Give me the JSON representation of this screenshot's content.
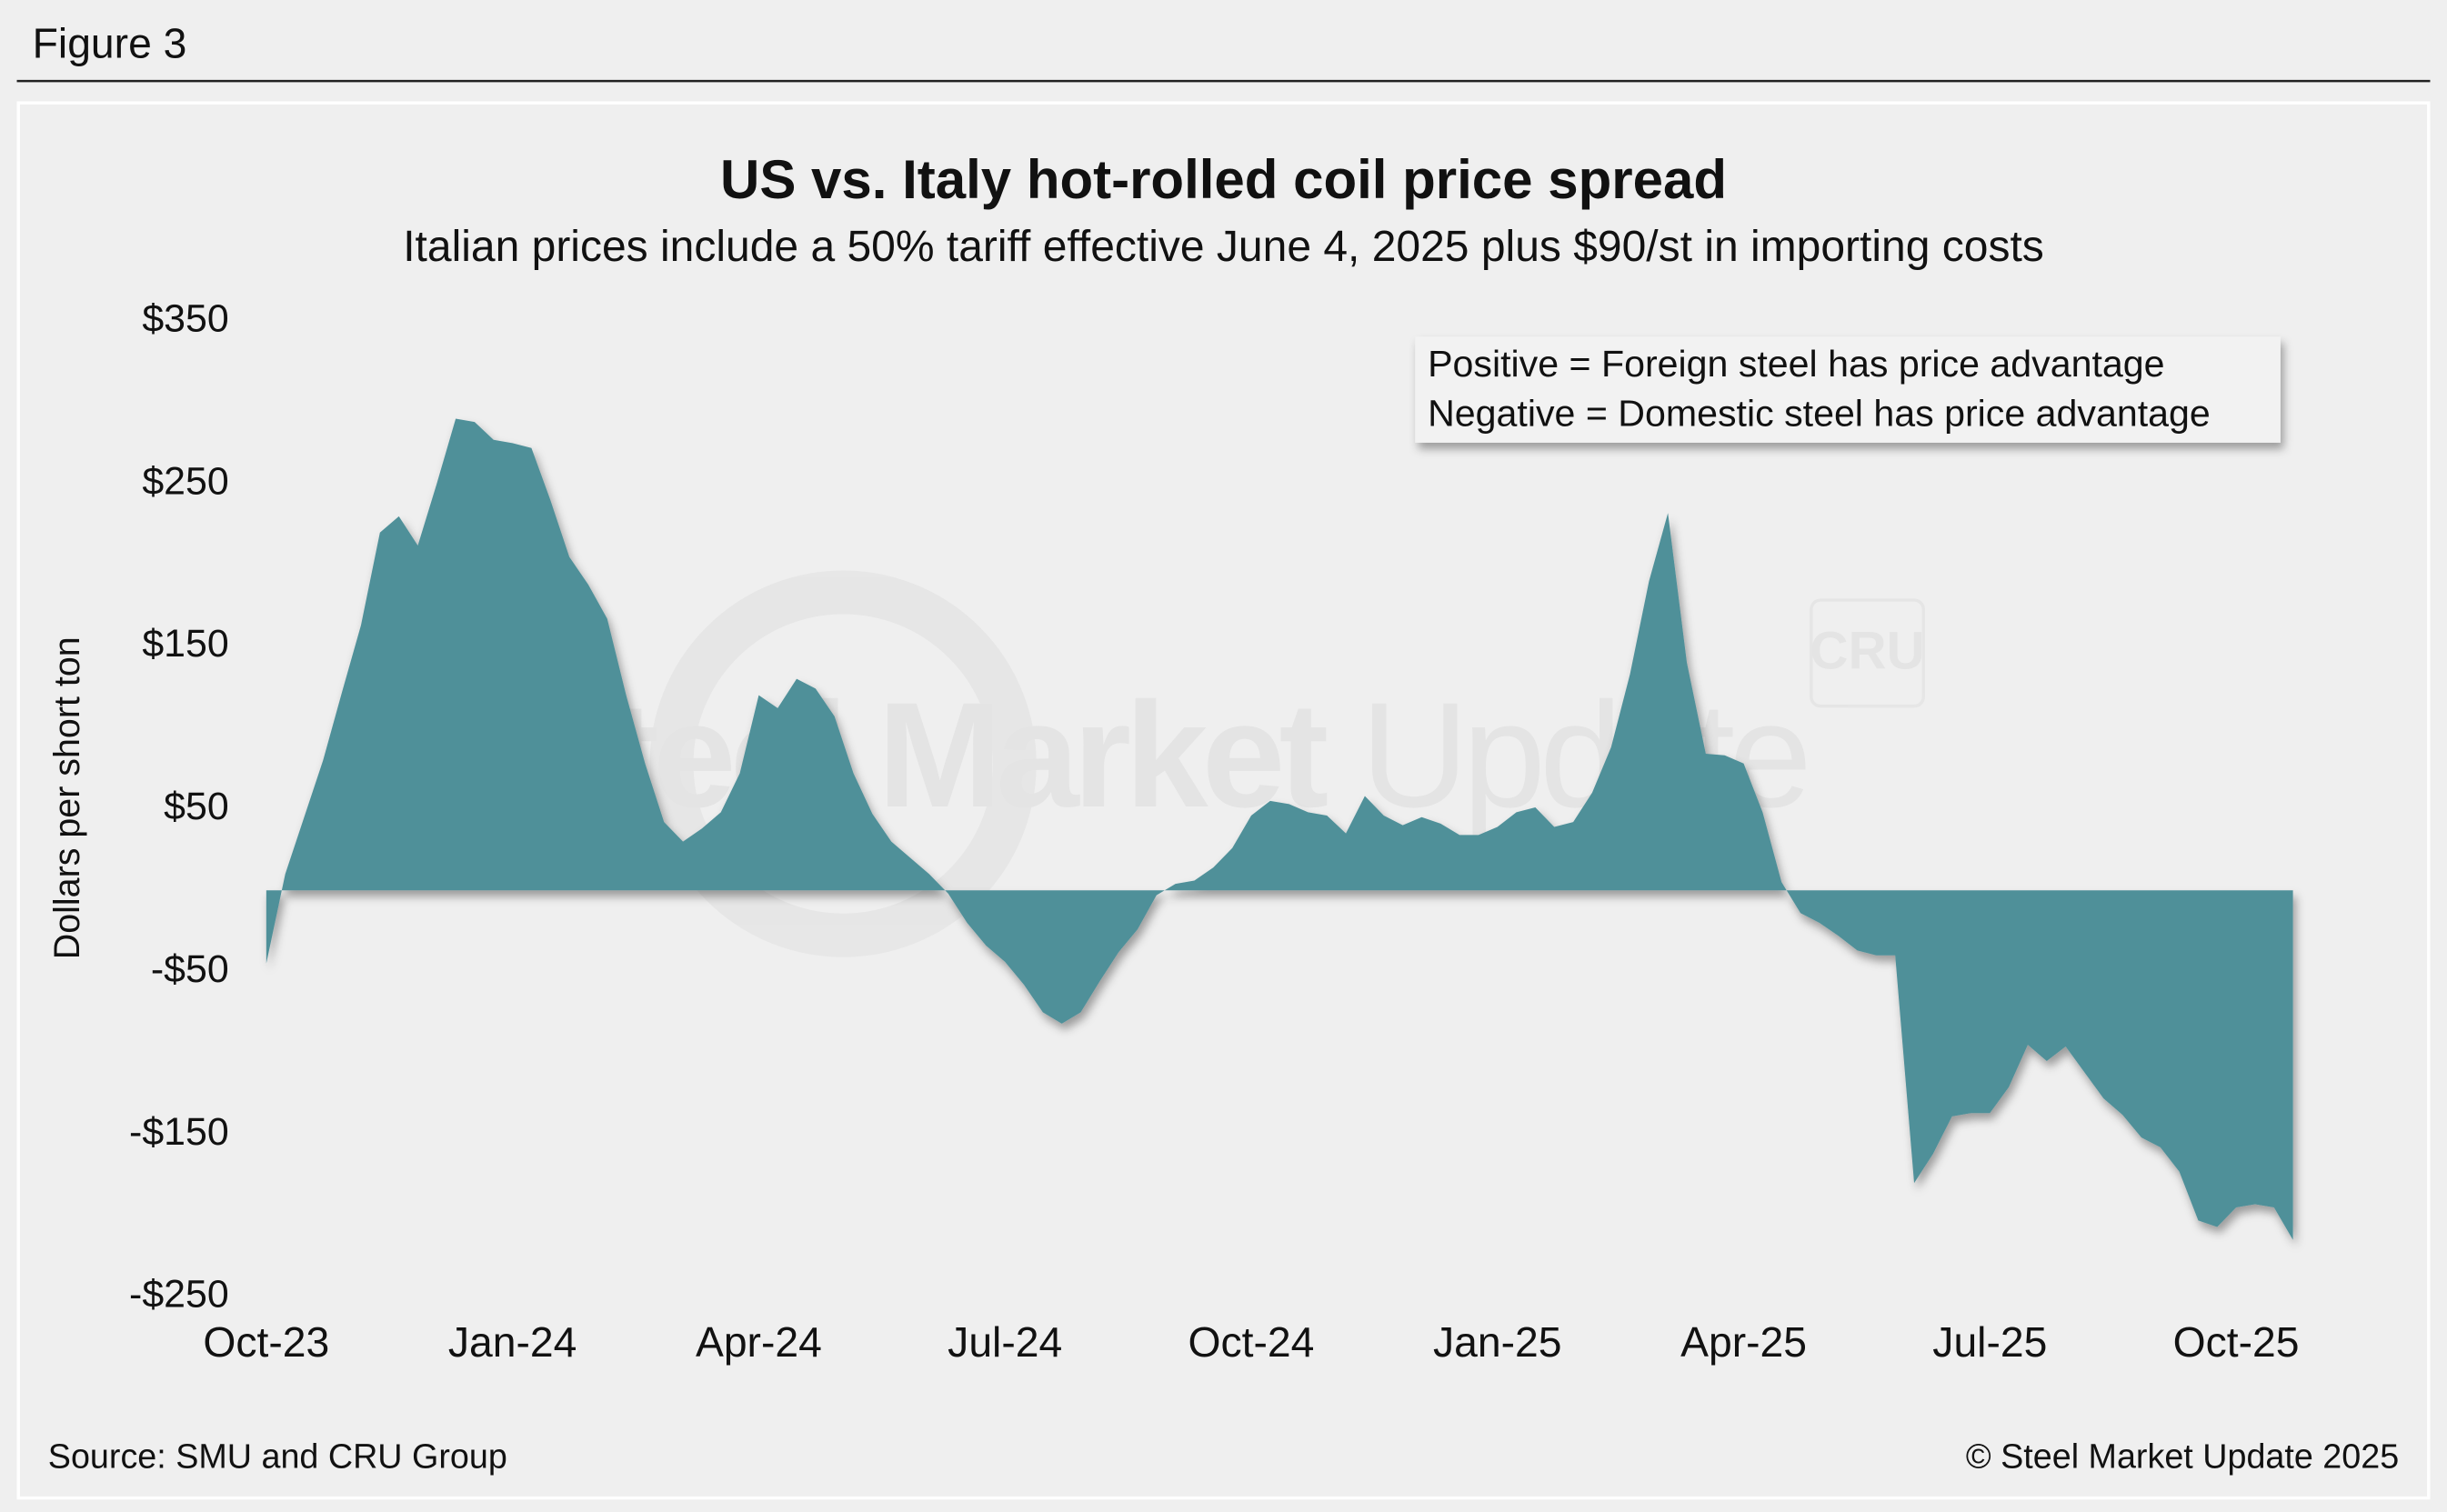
{
  "figure_label": "Figure 3",
  "source": "Source: SMU and CRU Group",
  "copyright": "© Steel Market Update 2025",
  "watermark": [
    "Steel Market",
    "Update"
  ],
  "watermark_logo": "CRU",
  "chart_data": {
    "type": "area",
    "title": "US vs. Italy hot-rolled coil price spread",
    "subtitle": "Italian prices include a 50% tariff effective June 4, 2025 plus $90/st in importing costs",
    "y_label": "Dollars per short ton",
    "annotations": [
      "Positive = Foreign steel has price advantage",
      "Negative = Domestic steel has price advantage"
    ],
    "color": "#4f9099",
    "ylim": [
      -250,
      350
    ],
    "yticks": [
      {
        "value": 350,
        "label": "$350"
      },
      {
        "value": 250,
        "label": "$250"
      },
      {
        "value": 150,
        "label": "$150"
      },
      {
        "value": 50,
        "label": "$50"
      },
      {
        "value": -50,
        "label": "-$50"
      },
      {
        "value": -150,
        "label": "-$150"
      },
      {
        "value": -250,
        "label": "-$250"
      }
    ],
    "categories": [
      "Oct-23",
      null,
      null,
      null,
      null,
      null,
      null,
      null,
      null,
      null,
      null,
      null,
      null,
      "Jan-24",
      null,
      null,
      null,
      null,
      null,
      null,
      null,
      null,
      null,
      null,
      null,
      null,
      "Apr-24",
      null,
      null,
      null,
      null,
      null,
      null,
      null,
      null,
      null,
      null,
      null,
      null,
      "Jul-24",
      null,
      null,
      null,
      null,
      null,
      null,
      null,
      null,
      null,
      null,
      null,
      null,
      "Oct-24",
      null,
      null,
      null,
      null,
      null,
      null,
      null,
      null,
      null,
      null,
      null,
      null,
      "Jan-25",
      null,
      null,
      null,
      null,
      null,
      null,
      null,
      null,
      null,
      null,
      null,
      null,
      "Apr-25",
      null,
      null,
      null,
      null,
      null,
      null,
      null,
      null,
      null,
      null,
      null,
      null,
      "Jul-25",
      null,
      null,
      null,
      null,
      null,
      null,
      null,
      null,
      null,
      null,
      null,
      null,
      "Oct-25",
      null,
      null,
      null
    ],
    "values": [
      -45,
      10,
      45,
      80,
      122,
      163,
      220,
      230,
      212,
      250,
      290,
      288,
      277,
      275,
      272,
      240,
      205,
      188,
      167,
      120,
      78,
      42,
      30,
      38,
      48,
      72,
      120,
      112,
      130,
      124,
      107,
      72,
      47,
      30,
      20,
      10,
      -2,
      -20,
      -34,
      -44,
      -58,
      -75,
      -82,
      -75,
      -56,
      -38,
      -24,
      -3,
      4,
      6,
      14,
      26,
      46,
      55,
      53,
      48,
      46,
      35,
      58,
      46,
      40,
      45,
      41,
      34,
      34,
      39,
      48,
      51,
      39,
      42,
      60,
      88,
      133,
      190,
      232,
      140,
      84,
      83,
      78,
      48,
      5,
      -14,
      -20,
      -28,
      -37,
      -40,
      -40,
      -180,
      -162,
      -139,
      -137,
      -137,
      -121,
      -95,
      -105,
      -96,
      -112,
      -128,
      -138,
      -152,
      -158,
      -173,
      -203,
      -207,
      -195,
      -193,
      -195,
      -215
    ]
  }
}
